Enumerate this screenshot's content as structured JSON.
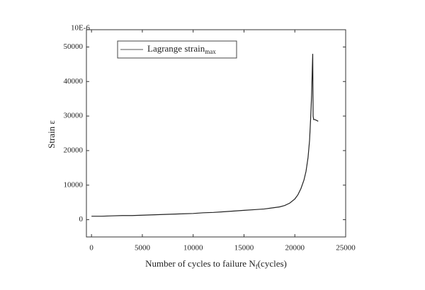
{
  "chart_data": {
    "type": "line",
    "axis_multiplier": "10E-6",
    "ylabel": "Strain ε",
    "xlabel": {
      "main": "Number of cycles to failure N",
      "sub": "f",
      "tail": "(cycles)"
    },
    "legend_position": "upper left",
    "x": [
      0,
      1000,
      2000,
      3000,
      4000,
      5000,
      6000,
      7000,
      8000,
      9000,
      10000,
      11000,
      12000,
      13000,
      14000,
      15000,
      16000,
      17000,
      18000,
      18500,
      19000,
      19500,
      20000,
      20300,
      20600,
      20900,
      21100,
      21300,
      21450,
      21550,
      21650,
      21720,
      21760,
      21800,
      21850,
      21950,
      22100,
      22300
    ],
    "series": [
      {
        "name": {
          "main": "Lagrange strain",
          "sub": "max"
        },
        "color": "#222222",
        "values": [
          1000,
          1000,
          1100,
          1200,
          1200,
          1300,
          1400,
          1500,
          1600,
          1700,
          1800,
          2000,
          2100,
          2300,
          2500,
          2700,
          2900,
          3100,
          3500,
          3700,
          4100,
          4800,
          6000,
          7200,
          9000,
          11500,
          14000,
          18000,
          23000,
          29000,
          36000,
          44000,
          48000,
          30000,
          29000,
          29000,
          28800,
          28500
        ]
      }
    ],
    "xlim": [
      -500,
      25000
    ],
    "xticks": [
      0,
      5000,
      10000,
      15000,
      20000,
      25000
    ],
    "ylim": [
      -5000,
      55000
    ],
    "yticks": [
      0,
      10000,
      20000,
      30000,
      40000,
      50000
    ],
    "grid": false
  }
}
